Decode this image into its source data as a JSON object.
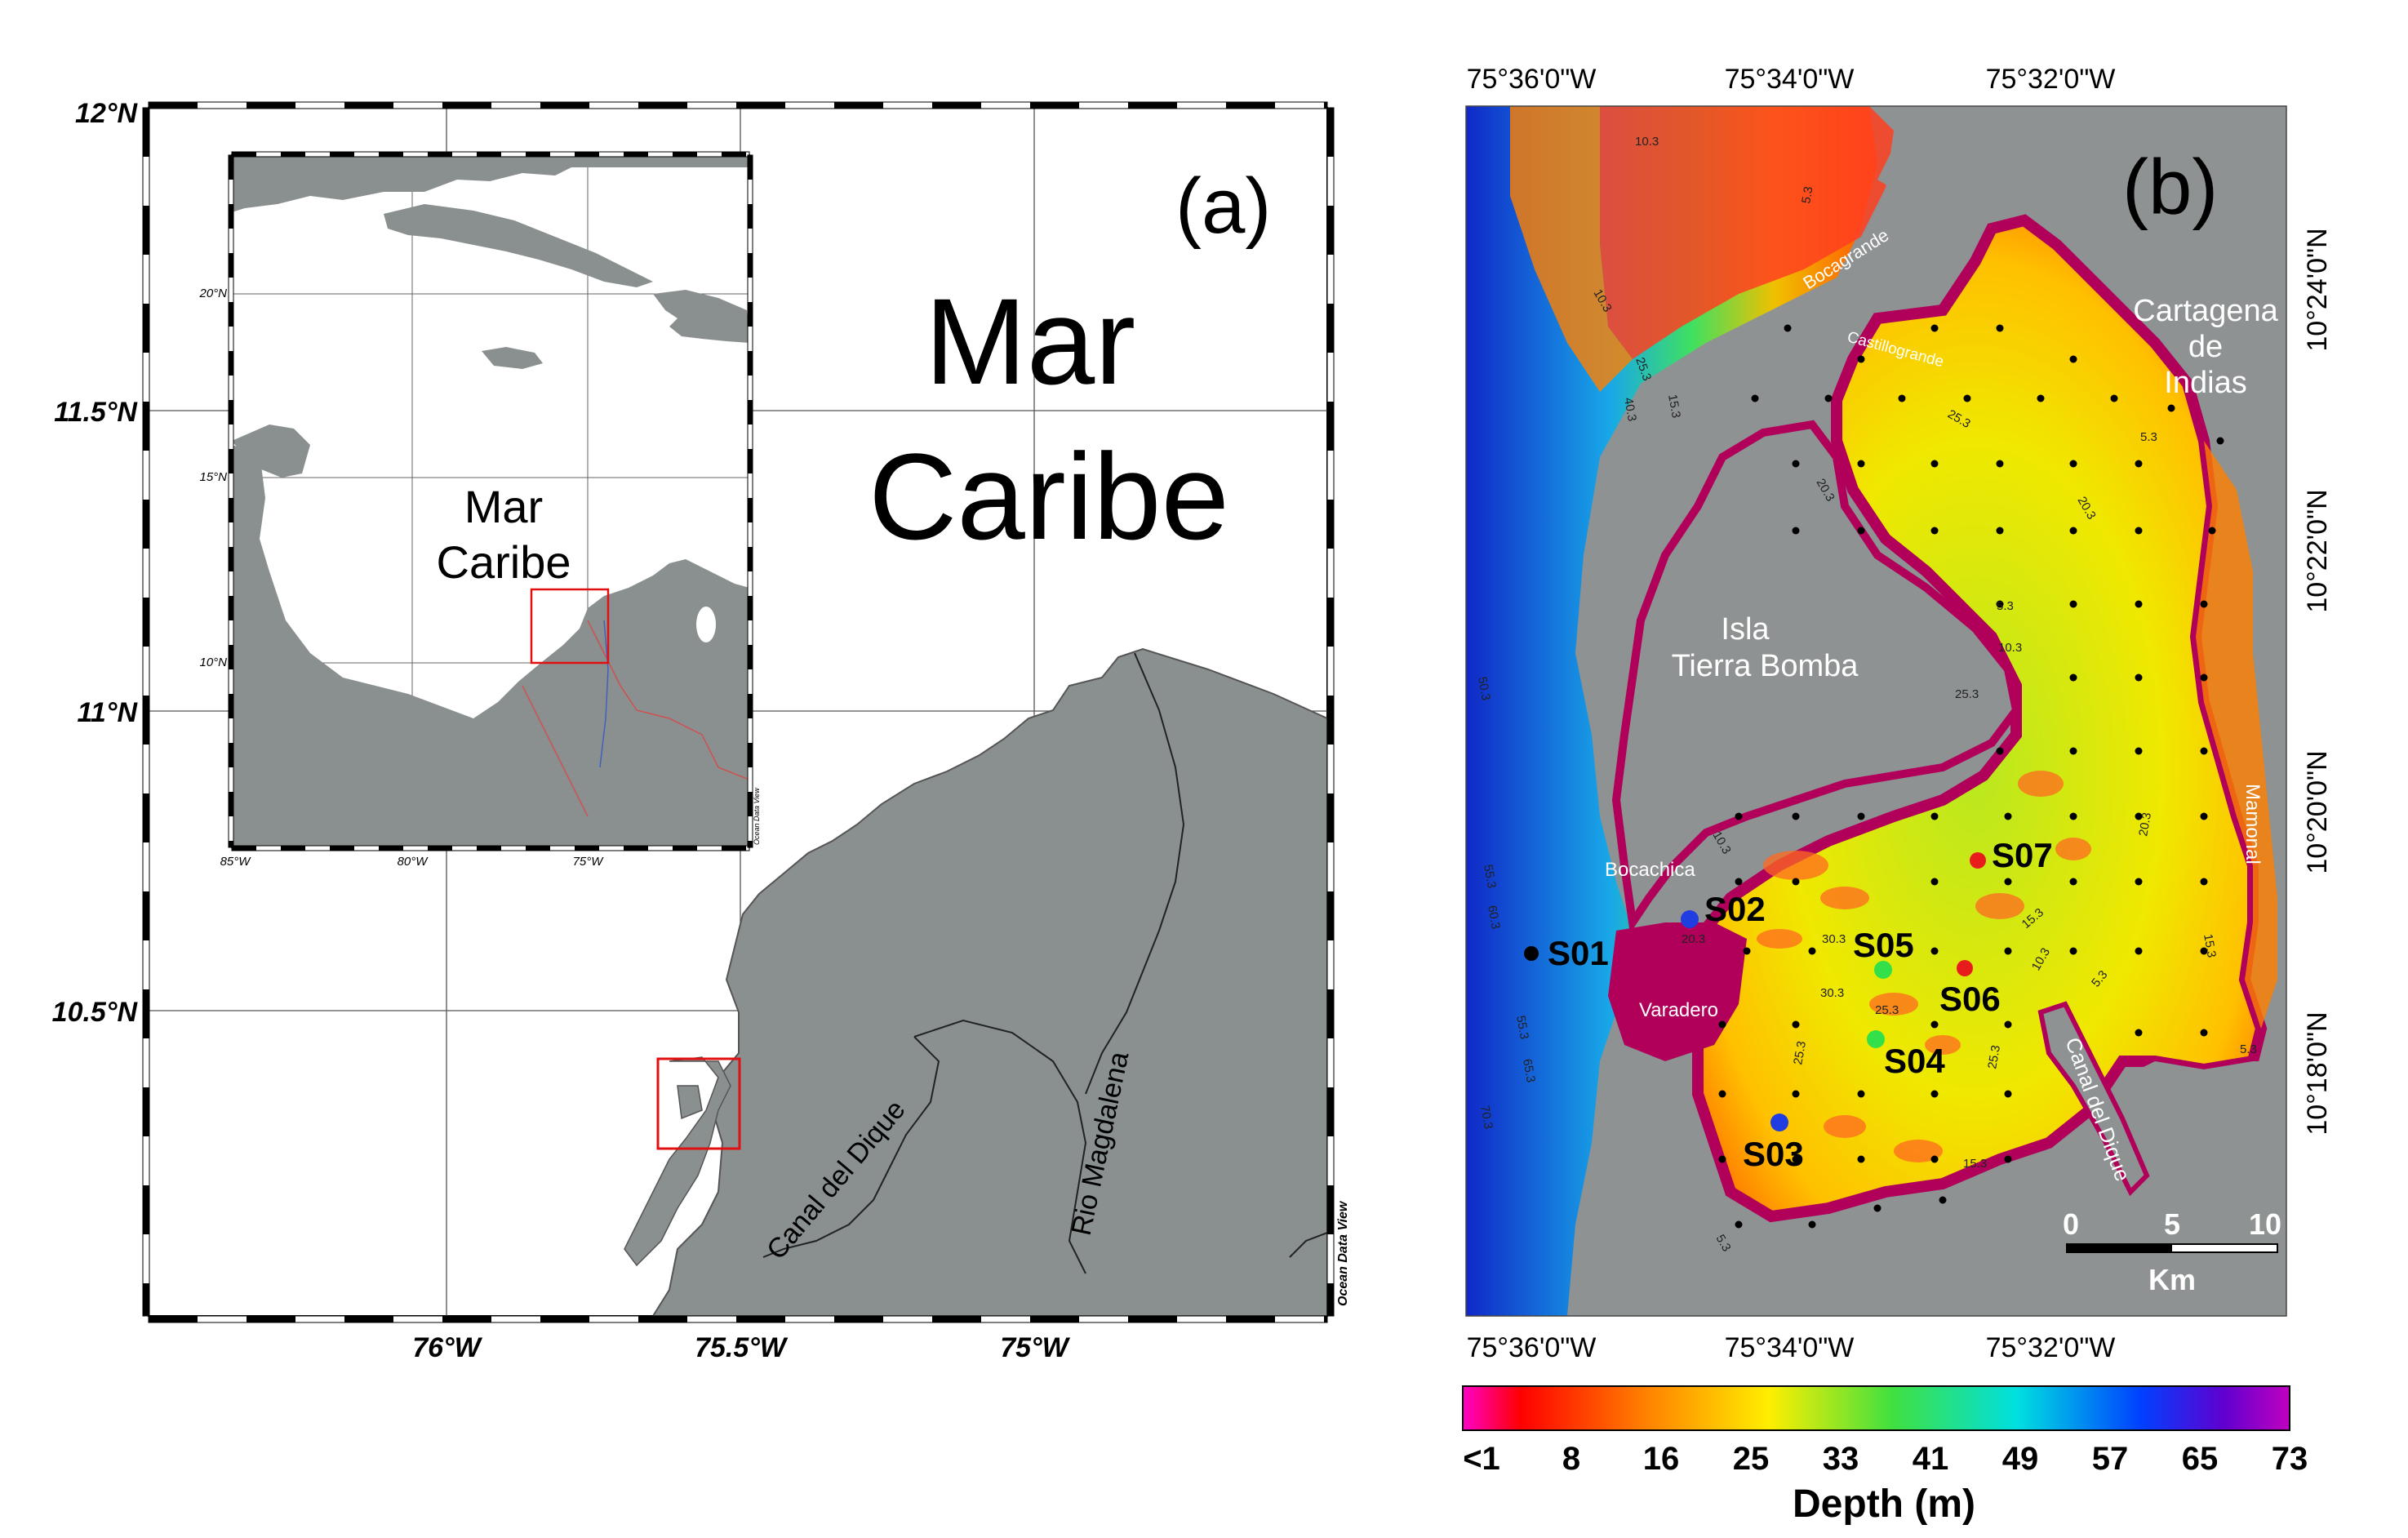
{
  "panel_a": {
    "letter": "(a)",
    "sea_label_line1": "Mar",
    "sea_label_line2": "Caribe",
    "lat_ticks": [
      "12°N",
      "11.5°N",
      "11°N",
      "10.5°N"
    ],
    "lon_ticks": [
      "76°W",
      "75.5°W",
      "75°W"
    ],
    "river_1": "Canal del Dique",
    "river_2": "Rio Magdalena",
    "credit": "Ocean Data View",
    "inset": {
      "sea_label_line1": "Mar",
      "sea_label_line2": "Caribe",
      "lat_ticks": [
        "20°N",
        "15°N",
        "10°N"
      ],
      "lon_ticks": [
        "85°W",
        "80°W",
        "75°W"
      ],
      "credit": "Ocean Data View"
    }
  },
  "panel_b": {
    "letter": "(b)",
    "top_lon_ticks": [
      "75°36'0\"W",
      "75°34'0\"W",
      "75°32'0\"W"
    ],
    "bottom_lon_ticks": [
      "75°36'0\"W",
      "75°34'0\"W",
      "75°32'0\"W"
    ],
    "right_lat_ticks": [
      "10°24'0\"N",
      "10°22'0\"N",
      "10°20'0\"N",
      "10°18'0\"N"
    ],
    "places": {
      "bocagrande": "Bocagrande",
      "castillogrande": "Castillogrande",
      "cartagena_1": "Cartagena",
      "cartagena_2": "de",
      "cartagena_3": "Indias",
      "isla_1": "Isla",
      "isla_2": "Tierra Bomba",
      "bocachica": "Bocachica",
      "varadero": "Varadero",
      "mamonal": "Mamonal",
      "canal_dique": "Canal del Dique"
    },
    "stations": [
      {
        "id": "S01",
        "color": "#000000"
      },
      {
        "id": "S02",
        "color": "#1f3de0"
      },
      {
        "id": "S03",
        "color": "#1f3de0"
      },
      {
        "id": "S04",
        "color": "#33e04a"
      },
      {
        "id": "S05",
        "color": "#33e04a"
      },
      {
        "id": "S06",
        "color": "#e81c1c"
      },
      {
        "id": "S07",
        "color": "#e81c1c"
      }
    ],
    "contours": [
      "10.3",
      "5.3",
      "10.3",
      "25.3",
      "15.3",
      "40.3",
      "20.3",
      "25.3",
      "20.3",
      "5.3",
      "10.3",
      "5.3",
      "25.3",
      "50.3",
      "55.3",
      "60.3",
      "55.3",
      "65.3",
      "70.3",
      "10.3",
      "30.3",
      "20.3",
      "30.3",
      "25.3",
      "15.3",
      "10.3",
      "5.3",
      "25.3",
      "25.3",
      "15.3",
      "20.3",
      "15.3",
      "5.3",
      "5.3"
    ],
    "scale_bar": {
      "ticks": [
        "0",
        "5",
        "10"
      ],
      "unit": "Km"
    },
    "colorbar": {
      "ticks": [
        "<1",
        "8",
        "16",
        "25",
        "33",
        "41",
        "49",
        "57",
        "65",
        "73"
      ],
      "title": "Depth (m)"
    }
  }
}
